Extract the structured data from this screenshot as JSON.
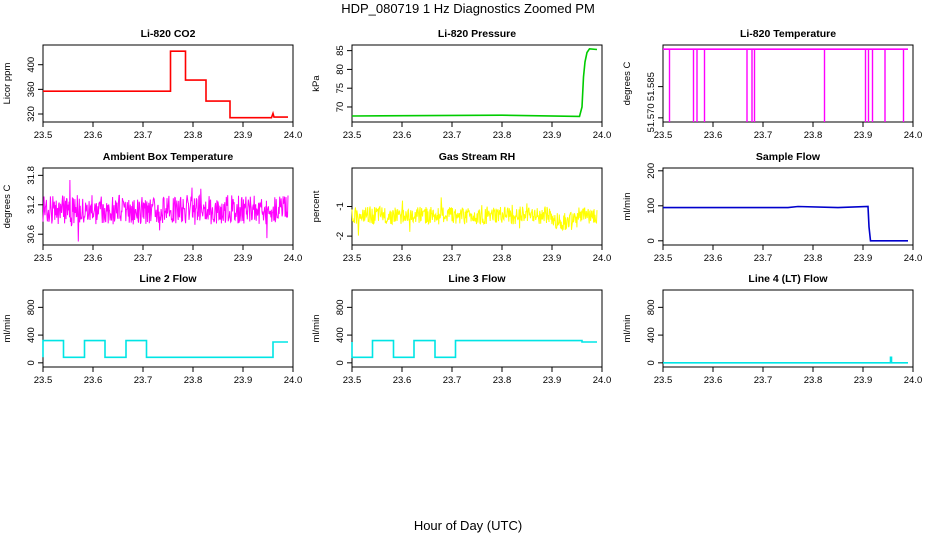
{
  "title": "HDP_080719  1 Hz Diagnostics Zoomed PM",
  "xlabel": "Hour of Day (UTC)",
  "chart_data": [
    {
      "type": "line",
      "title": "Li-820 CO2",
      "ylabel": "Licor ppm",
      "color": "#ff0000",
      "xlim": [
        23.5,
        24.0
      ],
      "ylim": [
        307,
        432
      ],
      "xticks": [
        "23.5",
        "23.6",
        "23.7",
        "23.8",
        "23.9",
        "24.0"
      ],
      "yticks": [
        320,
        360,
        400
      ],
      "x": [
        23.5,
        23.755,
        23.755,
        23.785,
        23.785,
        23.826,
        23.826,
        23.874,
        23.874,
        23.957,
        23.96,
        23.962,
        23.99
      ],
      "y": [
        357,
        357,
        422,
        422,
        375,
        375,
        341,
        341,
        314,
        314,
        321,
        315,
        315
      ]
    },
    {
      "type": "line",
      "title": "Li-820 Pressure",
      "ylabel": "kPa",
      "color": "#00cc00",
      "xlim": [
        23.5,
        24.0
      ],
      "ylim": [
        66,
        86.5
      ],
      "xticks": [
        "23.5",
        "23.6",
        "23.7",
        "23.8",
        "23.9",
        "24.0"
      ],
      "yticks": [
        70,
        75,
        80,
        85
      ],
      "x": [
        23.5,
        23.8,
        23.955,
        23.96,
        23.963,
        23.966,
        23.97,
        23.975,
        23.99
      ],
      "y": [
        67.6,
        67.8,
        67.5,
        70,
        78,
        82,
        84.5,
        85.5,
        85.3
      ]
    },
    {
      "type": "line",
      "title": "Li-820 Temperature",
      "ylabel": "degrees C",
      "color": "#ff00ff",
      "xlim": [
        23.5,
        24.0
      ],
      "ylim": [
        51.568,
        51.605
      ],
      "xticks": [
        "23.5",
        "23.6",
        "23.7",
        "23.8",
        "23.9",
        "24.0"
      ],
      "yticks": [
        "51.570",
        "51.585"
      ],
      "x": [
        23.5,
        23.99
      ],
      "y": [
        51.603,
        51.603
      ],
      "dropouts": [
        23.513,
        23.561,
        23.568,
        23.583,
        23.668,
        23.678,
        23.683,
        23.823,
        23.905,
        23.911,
        23.919,
        23.944,
        23.981
      ]
    },
    {
      "type": "line",
      "title": "Ambient Box Temperature",
      "ylabel": "degrees C",
      "color": "#ff00ff",
      "xlim": [
        23.5,
        24.0
      ],
      "ylim": [
        30.38,
        31.95
      ],
      "xticks": [
        "23.5",
        "23.6",
        "23.7",
        "23.8",
        "23.9",
        "24.0"
      ],
      "yticks": [
        30.6,
        31.2,
        31.8
      ],
      "noise_center": 31.1,
      "noise_spread": 0.6
    },
    {
      "type": "line",
      "title": "Gas Stream RH",
      "ylabel": "percent",
      "color": "#ffff00",
      "xlim": [
        23.5,
        24.0
      ],
      "ylim": [
        -2.3,
        0.3
      ],
      "xticks": [
        "23.5",
        "23.6",
        "23.7",
        "23.8",
        "23.9",
        "24.0"
      ],
      "yticks": [
        -2.0,
        -1.0
      ],
      "noise_center": -1.3,
      "noise_spread": 0.6
    },
    {
      "type": "line",
      "title": "Sample Flow",
      "ylabel": "ml/min",
      "color": "#0000cc",
      "xlim": [
        23.5,
        24.0
      ],
      "ylim": [
        -12,
        208
      ],
      "xticks": [
        "23.5",
        "23.6",
        "23.7",
        "23.8",
        "23.9",
        "24.0"
      ],
      "yticks": [
        0,
        100,
        200
      ],
      "x": [
        23.5,
        23.75,
        23.77,
        23.85,
        23.91,
        23.912,
        23.915,
        23.99
      ],
      "y": [
        95,
        95,
        98,
        95,
        98,
        40,
        0,
        0
      ]
    },
    {
      "type": "line",
      "title": "Line 2 Flow",
      "ylabel": "ml/min",
      "color": "#00e5e5",
      "xlim": [
        23.5,
        24.0
      ],
      "ylim": [
        -60,
        1050
      ],
      "xticks": [
        "23.5",
        "23.6",
        "23.7",
        "23.8",
        "23.9",
        "24.0"
      ],
      "yticks": [
        0,
        400,
        800
      ],
      "x": [
        23.5,
        23.5,
        23.541,
        23.541,
        23.583,
        23.583,
        23.624,
        23.624,
        23.666,
        23.666,
        23.707,
        23.707,
        23.96,
        23.96,
        23.99
      ],
      "y": [
        80,
        320,
        320,
        80,
        80,
        320,
        320,
        80,
        80,
        320,
        320,
        80,
        80,
        300,
        300
      ]
    },
    {
      "type": "line",
      "title": "Line 3 Flow",
      "ylabel": "ml/min",
      "color": "#00e5e5",
      "xlim": [
        23.5,
        24.0
      ],
      "ylim": [
        -60,
        1050
      ],
      "xticks": [
        "23.5",
        "23.6",
        "23.7",
        "23.8",
        "23.9",
        "24.0"
      ],
      "yticks": [
        0,
        400,
        800
      ],
      "x": [
        23.5,
        23.5,
        23.503,
        23.503,
        23.541,
        23.541,
        23.583,
        23.583,
        23.624,
        23.624,
        23.666,
        23.666,
        23.707,
        23.707,
        23.96,
        23.96,
        23.99
      ],
      "y": [
        300,
        80,
        80,
        80,
        80,
        320,
        320,
        80,
        80,
        320,
        320,
        80,
        80,
        320,
        320,
        300,
        300
      ]
    },
    {
      "type": "line",
      "title": "Line 4 (LT) Flow",
      "ylabel": "ml/min",
      "color": "#00e5e5",
      "xlim": [
        23.5,
        24.0
      ],
      "ylim": [
        -60,
        1050
      ],
      "xticks": [
        "23.5",
        "23.6",
        "23.7",
        "23.8",
        "23.9",
        "24.0"
      ],
      "yticks": [
        0,
        400,
        800
      ],
      "x": [
        23.5,
        23.955,
        23.955,
        23.957,
        23.957,
        23.99
      ],
      "y": [
        0,
        0,
        80,
        80,
        0,
        0
      ]
    }
  ]
}
